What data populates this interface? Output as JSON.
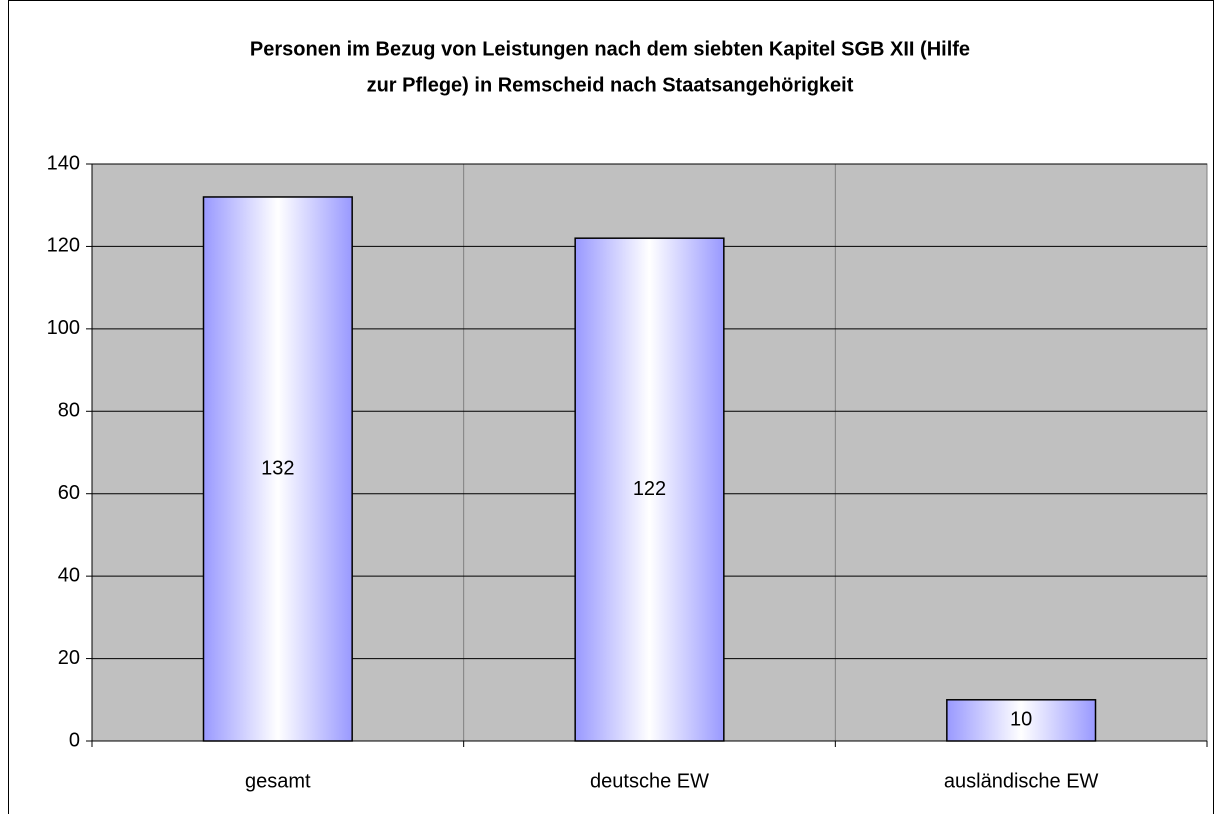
{
  "chart_data": {
    "type": "bar",
    "title": [
      "Personen im Bezug von Leistungen nach dem siebten Kapitel SGB XII (Hilfe",
      "zur Pflege) in Remscheid nach Staatsangehörigkeit"
    ],
    "categories": [
      "gesamt",
      "deutsche EW",
      "ausländische EW"
    ],
    "values": [
      132,
      122,
      10
    ],
    "color": "#9999ff",
    "ylim": [
      0,
      140
    ],
    "yticks": [
      0,
      20,
      40,
      60,
      80,
      100,
      120,
      140
    ],
    "grid": true
  }
}
